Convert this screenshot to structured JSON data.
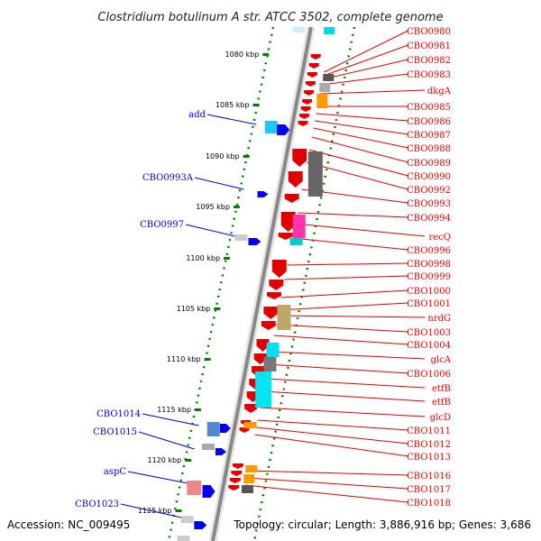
{
  "title": "Clostridium botulinum A str. ATCC 3502, complete genome",
  "footer": {
    "accession": "Accession: NC_009495",
    "topology": "Topology: circular; Length: 3,886,916 bp; Genes: 3,686"
  },
  "colors": {
    "forward_genes": "#e00000",
    "reverse_genes": "#0000ee",
    "right_labels": "#e00000",
    "left_labels": "#0000cc",
    "backbone": "#888888",
    "ticks": "#008000"
  },
  "scale": {
    "unit": "kbp",
    "ticks": [
      {
        "text": "1080 kbp"
      },
      {
        "text": "1085 kbp"
      },
      {
        "text": "1090 kbp"
      },
      {
        "text": "1095 kbp"
      },
      {
        "text": "1100 kbp"
      },
      {
        "text": "1105 kbp"
      },
      {
        "text": "1110 kbp"
      },
      {
        "text": "1115 kbp"
      },
      {
        "text": "1120 kbp"
      },
      {
        "text": "1125 kbp"
      }
    ]
  },
  "right_labels": [
    "CBO0980",
    "CBO0981",
    "CBO0982",
    "CBO0983",
    "dkgA",
    "CBO0985",
    "CBO0986",
    "CBO0987",
    "CBO0988",
    "CBO0989",
    "CBO0990",
    "CBO0992",
    "CBO0993",
    "CBO0994",
    "recQ",
    "CBO0996",
    "CBO0998",
    "CBO0999",
    "CBO1000",
    "CBO1001",
    "nrdG",
    "CBO1003",
    "CBO1004",
    "glcA",
    "CBO1006",
    "etfB",
    "etfB",
    "glcD",
    "CBO1011",
    "CBO1012",
    "CBO1013",
    "CBO1016",
    "CBO1017",
    "CBO1018"
  ],
  "left_labels": [
    "add",
    "CBO0993A",
    "CBO0997",
    "CBO1014",
    "CBO1015",
    "aspC",
    "CBO1023"
  ]
}
